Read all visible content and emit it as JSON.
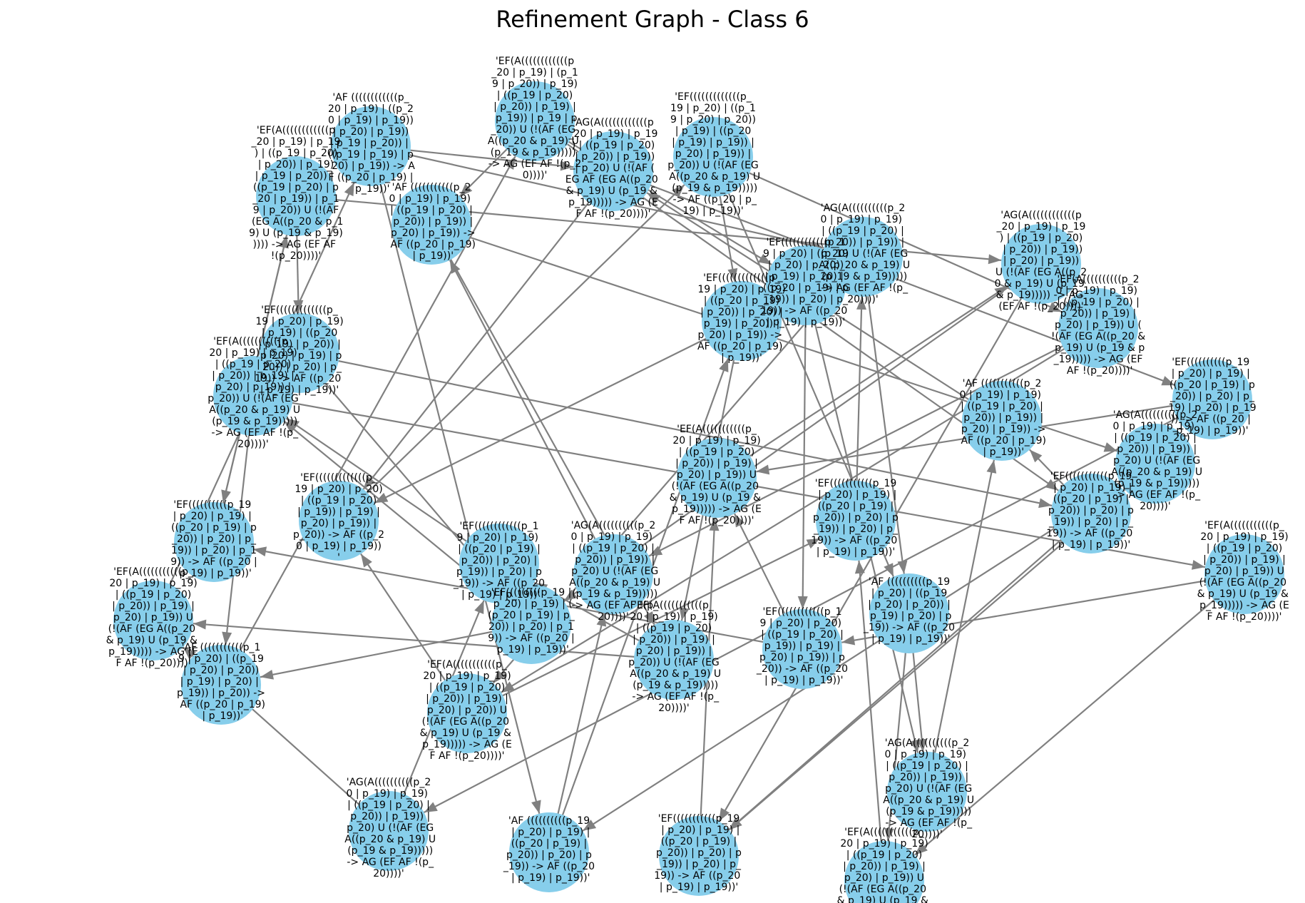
{
  "title": "Refinement Graph - Class 6",
  "colors": {
    "node": "#87ceeb",
    "edge": "#808080",
    "text": "#000000",
    "background": "#ffffff"
  },
  "nodes": [
    {
      "id": "n1",
      "label": "'EF(A((((((((((((p_20 | p_19) | p_19) | ((p_19 | p_20) | p_20)) | p_19) | p_19 | p_20)) | ((p_19 | p_20) | p_20 | p_19)) | p_19 | p_20)) U (!(AF (EG A((p_20 & p_19) U (p_19 & p_19))))) -> AG (EF AF !(p_20))))'"
    },
    {
      "id": "n2",
      "label": "'AF ((((((((((((p_20 | p_19) | ((p_20 | p_19) | p_19)) | p_20) | p_19)) | p_19 | p_20)) | ((p_19 | p_19) | p_20) | p_19)) -> AF ((p_20 | p_19) | p_19))'"
    },
    {
      "id": "n3",
      "label": "'EF(A((((((((((((p_20 | p_19) | (p_19 | p_20)) | p_19) | ((p_19 | p_20) | p_20)) | p_19) | p_19)) | p_19 | p_20)) U (!(AF (EG A((p_20 & p_19) U (p_19 & p_19))))) -> AG (EF AF !(p_20))))'"
    },
    {
      "id": "n4",
      "label": "'EF(((((((((((((p_19 | p_20) | ((p_19 | p_20) | p_20)) | p_19) | ((p_20 | p_19) | p_19)) | p_20) | p_19)) | p_20)) U (!(AF (EG A((p_20 & p_19) U (p_19 & p_19))))) -> AF ((p_20 | p_19) | p_19))'"
    },
    {
      "id": "n5",
      "label": "'AG(A((((((((((((p_20 | p_19) | p_19) | ((p_19 | p_20) | p_20)) | p_19)) | p_20) U (!(AF (EG AF (EG A((p_20 & p_19) U (p_19 & p_19))))) -> AG (EF AF !(p_20))))'"
    },
    {
      "id": "n6",
      "label": "'AF (((((((((((p_20 | p_19) | p_19) | ((p_19 | p_20) | p_20)) | p_19)) | p_20) | p_19)) -> AF ((p_20 | p_19) | p_19))'"
    },
    {
      "id": "n7",
      "label": "'EF(((((((((((((p_19 | p_20) | p_19) | p_19) | ((p_20 | p_19) | p_20)) | p_20) | p_19) | p_20)) | p_20) | p_19)) -> AF ((p_20 | p_19) | p_19))'"
    },
    {
      "id": "n8",
      "label": "'EF(A(((((((((((p_20 | p_19) | p_19) | ((p_19 | p_20) | p_20)) | p_19) | p_20) | p_19)) | p_20)) U (!(AF (EG A((p_20 & p_19) U (p_19 & p_19))))) -> AG (EF AF !(p_20))))'"
    },
    {
      "id": "n9",
      "label": "'AG(A((((((((((p_20 | p_19) | p_19) | ((p_19 | p_20) | p_20)) | p_19)) | p_20) U (!(AF (EG A((p_20 & p_19) U (p_19 & p_19))))) -> AG (EF AF !(p_20))))'"
    },
    {
      "id": "n10",
      "label": "'EF((((((((((((p_19 | p_20) | ((p_19 | p_20) | p_20)) | p_19) | p_20) | ((p_20 | p_19) | p_19)) | p_20) | p_19)) -> AF ((p_20 | p_19) | p_19))'"
    },
    {
      "id": "n11",
      "label": "'EF(((((((((((((p_19 | p_20) | p_19) | ((p_20 | p_19) | p_20)) | p_20) | p_19) | p_20)) | p_20) | p_19)) -> AF ((p_20 | p_19) | p_19))'"
    },
    {
      "id": "n12",
      "label": "'AG(A((((((((((((p_20 | p_19) | p_19) | ((p_19 | p_20) | p_20)) | p_19)) | p_20) | p_19)) U (!(AF (EG A((p_20 & p_19) U (p_19 & p_19))))) -> AG (EF AF !(p_20))))'"
    },
    {
      "id": "n13",
      "label": "'EF(A((((((((((p_20 | p_19) | p_19) | ((p_19 | p_20) | p_20)) | p_19) | p_20) | p_19)) U (!(AF (EG A((p_20 & p_19) U (p_19 & p_19))))) -> AG (EF AF !(p_20))))'"
    },
    {
      "id": "n14",
      "label": "'EF((((((((((p_19 | p_20) | p_19) | ((p_20 | p_19) | p_20)) | p_20) | p_19) | p_20) | p_19)) -> AF ((p_20 | p_19) | p_19))'"
    },
    {
      "id": "n15",
      "label": "'AG(A((((((((((p_20 | p_19) | p_19) | ((p_19 | p_20) | p_20)) | p_19)) | p_20) U (!(AF (EG A((p_20 & p_19) U (p_19 & p_19))))) -> AG (EF AF !(p_20))))'"
    },
    {
      "id": "n16",
      "label": "'EF(((((((((((p_19 | p_20) | p_19) | ((p_20 | p_19) | p_20)) | p_20) | p_19)) | p_20) | p_19)) -> AF ((p_20 | p_19) | p_19))'"
    },
    {
      "id": "n17",
      "label": "'EF(A(((((((((((p_20 | p_19) | p_19) | ((p_19 | p_20) | p_20)) | p_19) | p_20) | p_19)) U (!(AF (EG A((p_20 & p_19) U (p_19 & p_19))))) -> AG (EF AF !(p_20))))'"
    },
    {
      "id": "n18",
      "label": "'AF ((((((((((p_19 | p_20) | ((p_19 | p_20) | p_20)) | p_19) | p_20) | p_19)) -> AF ((p_20 | p_19) | p_19))'"
    },
    {
      "id": "n19",
      "label": "'EF((((((((((((p_19 | p_20) | p_20) | ((p_19 | p_20) | p_19)) | p_19) | p_20) | p_19)) | p_20)) -> AF ((p_20 | p_19) | p_19))'"
    },
    {
      "id": "n20",
      "label": "'EF(A(((((((((((p_20 | p_19) | p_19) | ((p_19 | p_20) | p_20)) | p_19) | p_20) | p_19)) | p_20)) U (!(AF (EG A((p_20 & p_19) U (p_19 & p_19))))) -> AG (EF AF !(p_20))))'"
    },
    {
      "id": "n21",
      "label": "'EF(((((((((p_19 | p_20) | p_19) | ((p_20 | p_19) | p_20)) | p_20) | p_19)) -> AF ((p_20 | p_19) | p_19))'"
    },
    {
      "id": "n22",
      "label": "'EF(A(((((((((((p_20 | p_19) | p_19) | ((p_19 | p_20) | p_20)) | p_19) | p_20) | p_20)) U (!(AF (EG A((p_20 & p_19) U (p_19 & p_19))))) -> AG (EF AF !(p_20))))'"
    },
    {
      "id": "n23",
      "label": "'AG(A((((((((((p_20 | p_19) | p_19) | ((p_19 | p_20) | p_20)) | p_19)) | p_20) U (!(AF (EG A((p_20 & p_19) U (p_19 & p_19))))) -> AG (EF AF !(p_20))))'"
    },
    {
      "id": "n24",
      "label": "'AF ((((((((((p_19 | p_20) | p_19) | ((p_20 | p_19) | p_20)) | p_20) | p_19)) -> AF ((p_20 | p_19) | p_19))'"
    },
    {
      "id": "n25",
      "label": "'EF(((((((((((p_19 | p_20) | p_19) | ((p_20 | p_19) | p_20)) | p_20) | p_19)) | p_20) | p_19)) -> AF ((p_20 | p_19) | p_19))'"
    },
    {
      "id": "n26",
      "label": "'EF(A(((((((((((p_20 | p_19) | p_19) | ((p_19 | p_20) | p_20)) | p_19) | p_20) | p_19)) U (!(AF (EG A((p_20 & p_19) U (p_19 & p_19))))) -> AG (EF AF !(p_20))))'"
    },
    {
      "id": "n27",
      "label": "'AG(A((((((((((p_20 | p_19) | p_19) | ((p_19 | p_20) | p_20)) | p_19)) | p_20) U (!(AF (EG A((p_20 & p_19) U (p_19 & p_19))))) -> AG (EF AF !(p_20))))'"
    },
    {
      "id": "n28",
      "label": "'EF((((((((((p_19 | p_20) | p_19) | ((p_20 | p_19) | p_20)) | p_20) | p_19)) | p_20) | p_19)) -> AF ((p_20 | p_19) | p_19))'"
    },
    {
      "id": "n29",
      "label": "'EF(A(((((((((((p_20 | p_19) | p_19) | ((p_19 | p_20) | p_20)) | p_19) | p_20) | p_19)) U (!(AF (EG A((p_20 & p_19) U (p_19 & p_19))))) -> AG (EF AF !(p_20))))'"
    },
    {
      "id": "n30",
      "label": "'AF (((((((((((p_19 | p_20) | ((p_19 | p_20) | p_20)) | p_19) | p_20) | p_19)) | p_20)) -> AF ((p_20 | p_19) | p_19))'"
    },
    {
      "id": "n31",
      "label": "'EF(((((((((((((p_19 | p_20) | p_20) | ((p_19 | p_20) | p_19)) | p_19) | p_20) | p_19)) | p_20)) -> AF ((p_20 | p_19) | p_19))'"
    },
    {
      "id": "n32",
      "label": "'EF((((((((((((p_19 | p_20) | p_19) | ((p_20 | p_19) | p_20)) | p_20) | p_19)) | p_20) | p_19)) -> AF ((p_20 | p_19) | p_19))'"
    },
    {
      "id": "n33",
      "label": "'AG(A((((((((((p_20 | p_19) | p_19) | ((p_19 | p_20) | p_20)) | p_19)) | p_20) U (!(AF (EG A((p_20 & p_19) U (p_19 & p_19))))) -> AG (EF AF !(p_20))))'"
    },
    {
      "id": "n34",
      "label": "'EF(A(((((((((((p_20 | p_19) | p_19) | ((p_19 | p_20) | p_20)) | p_19) | p_20) | p_19)) U (!(AF (EG A((p_20 & p_19) U (p_19 & p_19))))) -> AG (EF AF !(p_20))))'"
    },
    {
      "id": "n35",
      "label": "'EF(((((((((((p_19 | p_20) | p_19) | ((p_20 | p_19) | p_20)) | p_20) | p_19)) | p_20) | p_19)) -> AF ((p_20 | p_19) | p_19))'"
    },
    {
      "id": "n36",
      "label": "'AF (((((((((((p_20 | p_19) | p_19) | ((p_19 | p_20) | p_20)) | p_19)) | p_20) | p_19)) -> AF ((p_20 | p_19) | p_19))'"
    }
  ],
  "edges": [
    [
      "n1",
      "n7"
    ],
    [
      "n1",
      "n12"
    ],
    [
      "n2",
      "n5"
    ],
    [
      "n2",
      "n9"
    ],
    [
      "n3",
      "n10"
    ],
    [
      "n3",
      "n6"
    ],
    [
      "n4",
      "n11"
    ],
    [
      "n4",
      "n13"
    ],
    [
      "n5",
      "n14"
    ],
    [
      "n6",
      "n15"
    ],
    [
      "n7",
      "n16"
    ],
    [
      "n8",
      "n17"
    ],
    [
      "n9",
      "n18"
    ],
    [
      "n10",
      "n19"
    ],
    [
      "n11",
      "n20"
    ],
    [
      "n12",
      "n21"
    ],
    [
      "n13",
      "n22"
    ],
    [
      "n14",
      "n23"
    ],
    [
      "n15",
      "n24"
    ],
    [
      "n16",
      "n25"
    ],
    [
      "n17",
      "n26"
    ],
    [
      "n18",
      "n27"
    ],
    [
      "n19",
      "n28"
    ],
    [
      "n20",
      "n29"
    ],
    [
      "n21",
      "n30"
    ],
    [
      "n22",
      "n31"
    ],
    [
      "n23",
      "n32"
    ],
    [
      "n24",
      "n33"
    ],
    [
      "n25",
      "n34"
    ],
    [
      "n26",
      "n35"
    ],
    [
      "n27",
      "n36"
    ],
    [
      "n28",
      "n1"
    ],
    [
      "n29",
      "n2"
    ],
    [
      "n30",
      "n3"
    ],
    [
      "n31",
      "n4"
    ],
    [
      "n32",
      "n8"
    ],
    [
      "n33",
      "n6"
    ],
    [
      "n34",
      "n12"
    ],
    [
      "n35",
      "n9"
    ],
    [
      "n36",
      "n5"
    ],
    [
      "n1",
      "n28"
    ],
    [
      "n2",
      "n24"
    ],
    [
      "n7",
      "n21"
    ],
    [
      "n8",
      "n30"
    ],
    [
      "n10",
      "n27"
    ],
    [
      "n11",
      "n31"
    ],
    [
      "n13",
      "n33"
    ],
    [
      "n14",
      "n34"
    ],
    [
      "n15",
      "n25"
    ],
    [
      "n16",
      "n36"
    ],
    [
      "n17",
      "n19"
    ],
    [
      "n18",
      "n26"
    ],
    [
      "n20",
      "n32"
    ],
    [
      "n22",
      "n35"
    ],
    [
      "n23",
      "n29"
    ],
    [
      "n3",
      "n16"
    ],
    [
      "n4",
      "n18"
    ],
    [
      "n6",
      "n20"
    ],
    [
      "n9",
      "n22"
    ],
    [
      "n12",
      "n25"
    ],
    [
      "n5",
      "n31"
    ],
    [
      "n19",
      "n34"
    ],
    [
      "n21",
      "n8"
    ],
    [
      "n24",
      "n11"
    ]
  ]
}
